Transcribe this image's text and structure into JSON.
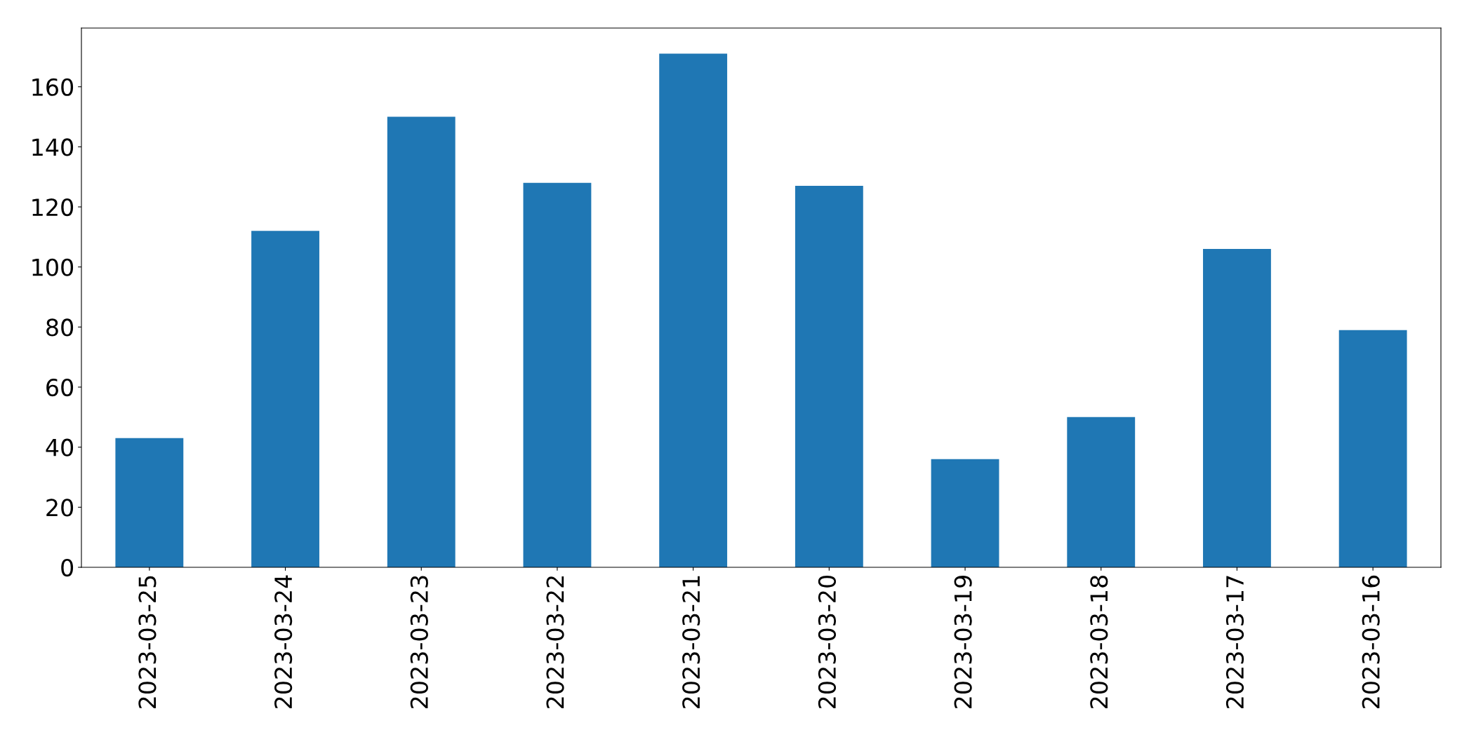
{
  "chart_data": {
    "type": "bar",
    "categories": [
      "2023-03-25",
      "2023-03-24",
      "2023-03-23",
      "2023-03-22",
      "2023-03-21",
      "2023-03-20",
      "2023-03-19",
      "2023-03-18",
      "2023-03-17",
      "2023-03-16"
    ],
    "values": [
      43,
      112,
      150,
      128,
      171,
      127,
      36,
      50,
      106,
      79
    ],
    "color": "#1f77b4",
    "ylim": [
      0,
      179.55
    ],
    "yticks": [
      0,
      20,
      40,
      60,
      80,
      100,
      120,
      140,
      160
    ],
    "grid": false,
    "legend": false
  }
}
